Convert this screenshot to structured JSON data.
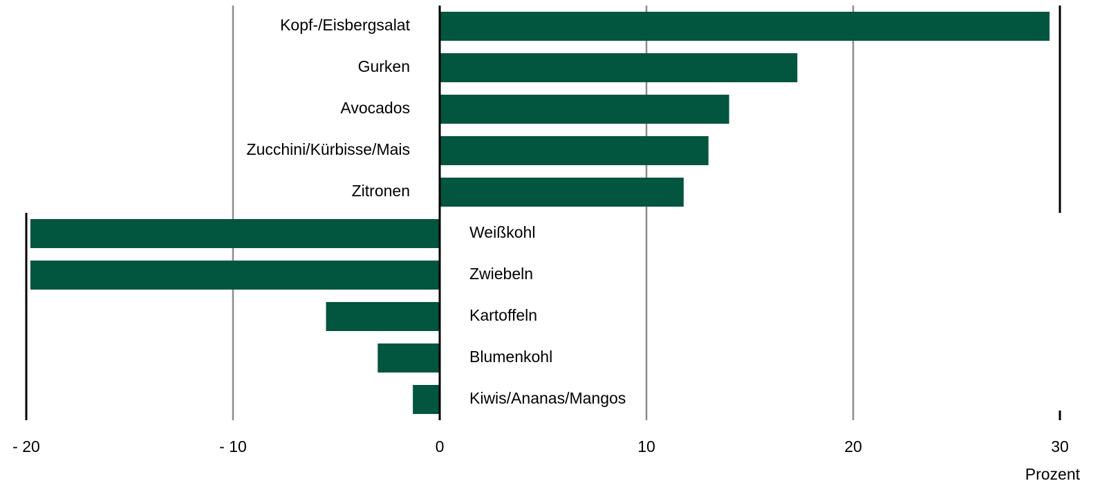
{
  "chart_data": {
    "type": "bar",
    "orientation": "horizontal",
    "categories": [
      "Kopf-/Eisbergsalat",
      "Gurken",
      "Avocados",
      "Zucchini/Kürbisse/Mais",
      "Zitronen",
      "Weißkohl",
      "Zwiebeln",
      "Kartoffeln",
      "Blumenkohl",
      "Kiwis/Ananas/Mangos"
    ],
    "values": [
      29.5,
      17.3,
      14.0,
      13.0,
      11.8,
      -19.8,
      -19.8,
      -5.5,
      -3.0,
      -1.3
    ],
    "color": "#02553f",
    "xlim": [
      -20,
      30
    ],
    "xticks": [
      {
        "value": -20,
        "label": "- 20"
      },
      {
        "value": -10,
        "label": "- 10"
      },
      0,
      10,
      20,
      30
    ],
    "xlabel": "Prozent",
    "grid": true
  }
}
